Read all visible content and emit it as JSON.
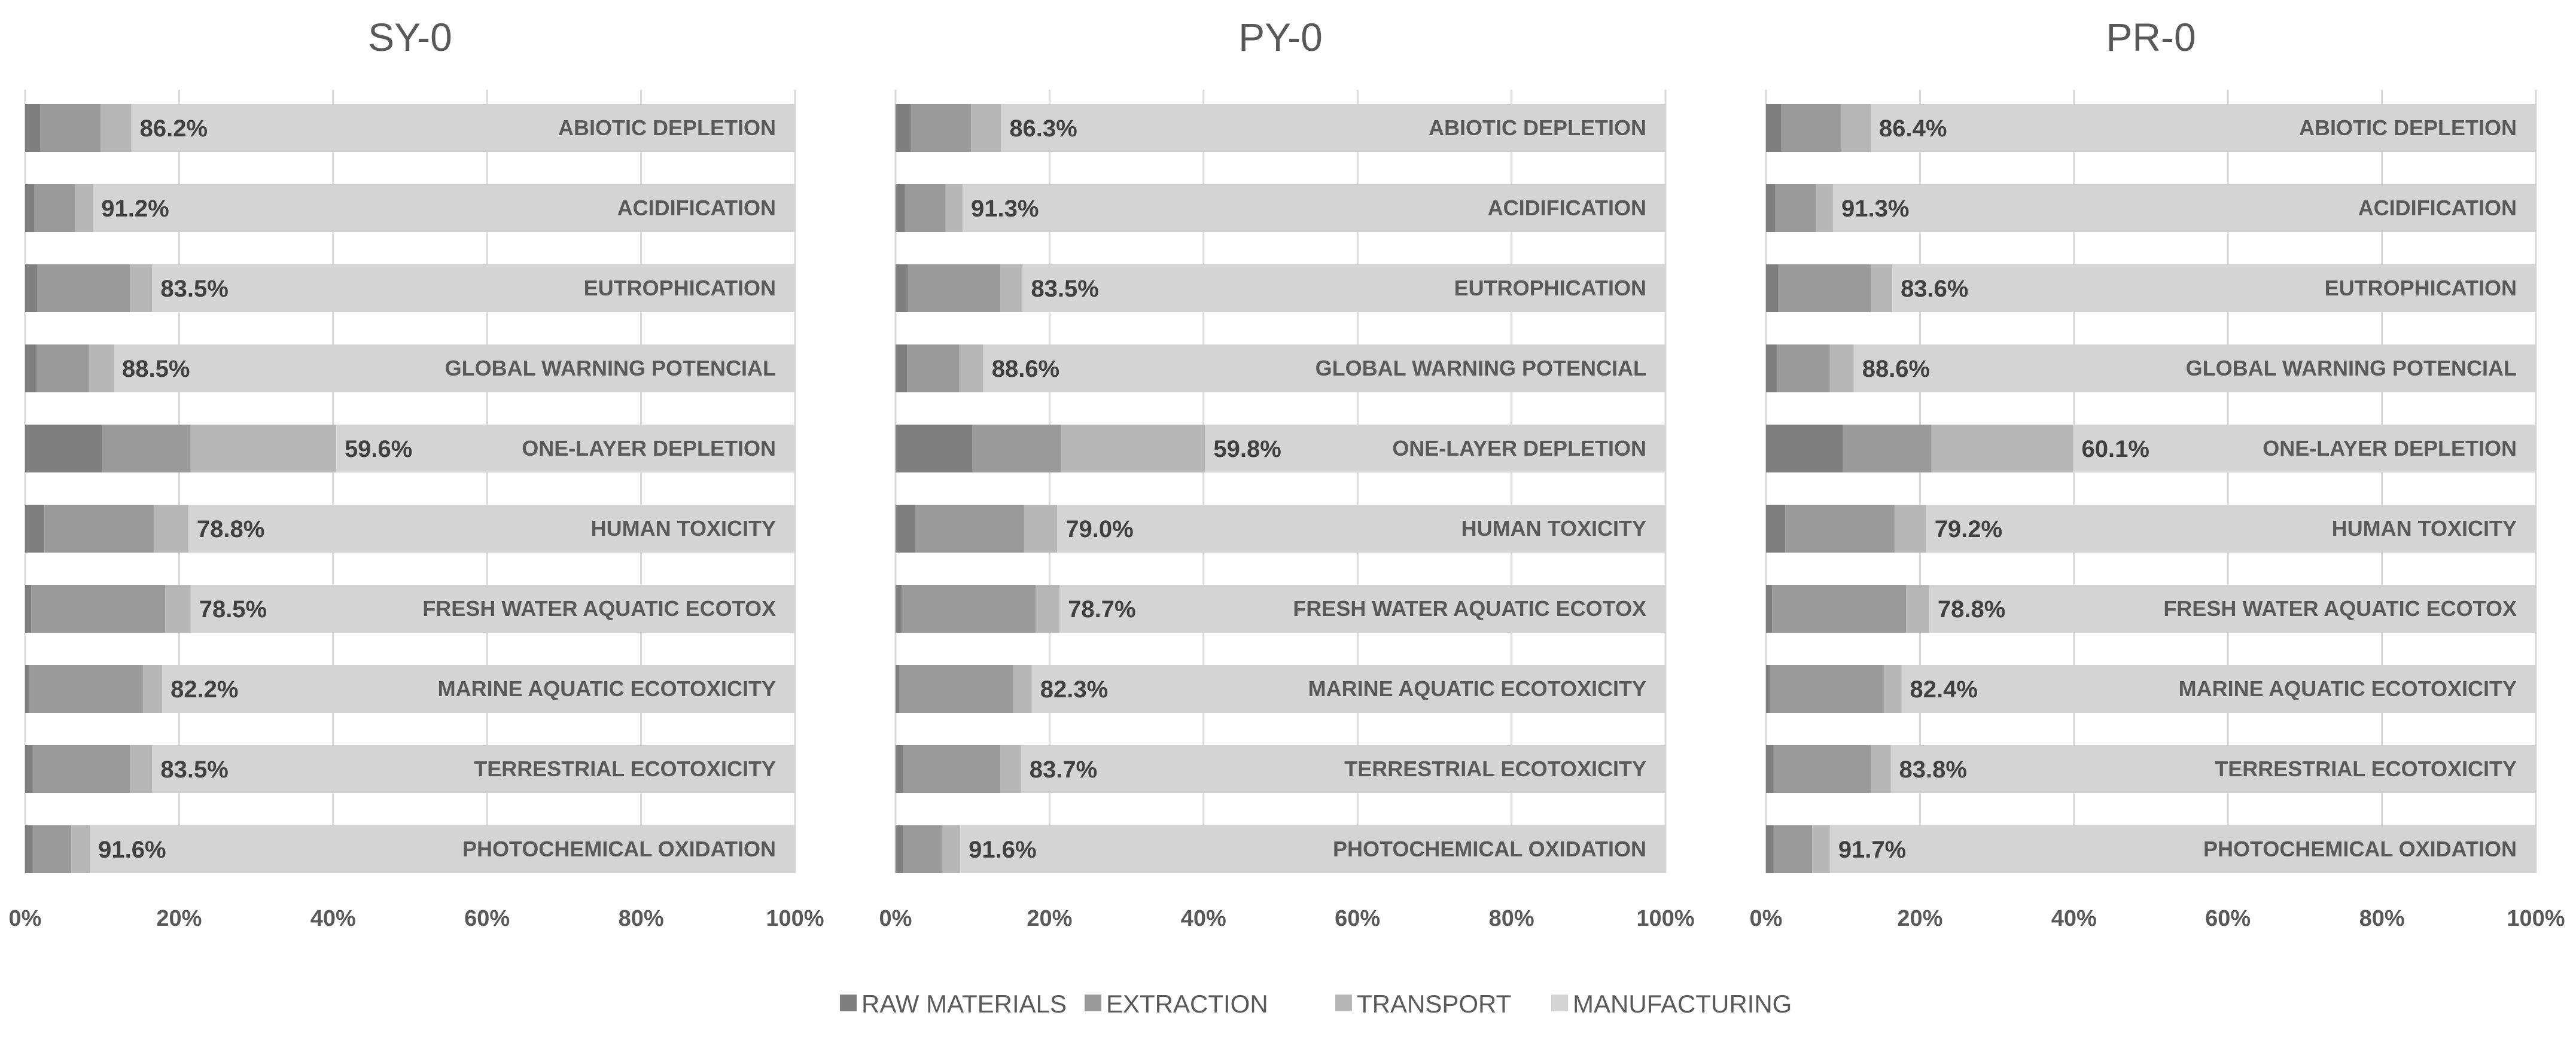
{
  "colors": {
    "RAW MATERIALS": "#7f7f7f",
    "EXTRACTION": "#9a9a9a",
    "TRANSPORT": "#b7b7b7",
    "MANUFACTURING": "#d4d4d4"
  },
  "chart_data": [
    {
      "type": "bar",
      "orientation": "horizontal",
      "stacked": "percent",
      "title": "SY-0",
      "categories": [
        "ABIOTIC DEPLETION",
        "ACIDIFICATION",
        "EUTROPHICATION",
        "GLOBAL WARNING POTENCIAL",
        "ONE-LAYER DEPLETION",
        "HUMAN TOXICITY",
        "FRESH WATER AQUATIC ECOTOX",
        "MARINE AQUATIC ECOTOXICITY",
        "TERRESTRIAL ECOTOXICITY",
        "PHOTOCHEMICAL OXIDATION"
      ],
      "series": [
        {
          "name": "RAW MATERIALS",
          "values": [
            2.0,
            1.2,
            1.6,
            1.5,
            10.0,
            2.5,
            0.8,
            0.5,
            1.0,
            1.0
          ]
        },
        {
          "name": "EXTRACTION",
          "values": [
            7.8,
            5.3,
            12.0,
            6.8,
            11.5,
            14.2,
            17.4,
            14.8,
            12.6,
            5.0
          ]
        },
        {
          "name": "TRANSPORT",
          "values": [
            4.0,
            2.3,
            2.9,
            3.2,
            18.9,
            4.5,
            3.3,
            2.5,
            2.9,
            2.4
          ]
        },
        {
          "name": "MANUFACTURING",
          "values": [
            86.2,
            91.2,
            83.5,
            88.5,
            59.6,
            78.8,
            78.5,
            82.2,
            83.5,
            91.6
          ]
        }
      ],
      "labels": [
        "86.2%",
        "91.2%",
        "83.5%",
        "88.5%",
        "59.6%",
        "78.8%",
        "78.5%",
        "82.2%",
        "83.5%",
        "91.6%"
      ],
      "xticks": [
        "0%",
        "20%",
        "40%",
        "60%",
        "80%",
        "100%"
      ],
      "xlim": [
        0,
        100
      ],
      "grid": true
    },
    {
      "type": "bar",
      "orientation": "horizontal",
      "stacked": "percent",
      "title": "PY-0",
      "categories": [
        "ABIOTIC DEPLETION",
        "ACIDIFICATION",
        "EUTROPHICATION",
        "GLOBAL WARNING POTENCIAL",
        "ONE-LAYER DEPLETION",
        "HUMAN TOXICITY",
        "FRESH WATER AQUATIC ECOTOX",
        "MARINE AQUATIC ECOTOXICITY",
        "TERRESTRIAL ECOTOXICITY",
        "PHOTOCHEMICAL OXIDATION"
      ],
      "series": [
        {
          "name": "RAW MATERIALS",
          "values": [
            2.0,
            1.2,
            1.6,
            1.5,
            10.0,
            2.5,
            0.8,
            0.5,
            1.0,
            1.0
          ]
        },
        {
          "name": "EXTRACTION",
          "values": [
            7.8,
            5.3,
            12.0,
            6.8,
            11.5,
            14.2,
            17.4,
            14.8,
            12.6,
            5.0
          ]
        },
        {
          "name": "TRANSPORT",
          "values": [
            3.9,
            2.2,
            2.9,
            3.1,
            18.7,
            4.3,
            3.1,
            2.4,
            2.7,
            2.4
          ]
        },
        {
          "name": "MANUFACTURING",
          "values": [
            86.3,
            91.3,
            83.5,
            88.6,
            59.8,
            79.0,
            78.7,
            82.3,
            83.7,
            91.6
          ]
        }
      ],
      "labels": [
        "86.3%",
        "91.3%",
        "83.5%",
        "88.6%",
        "59.8%",
        "79.0%",
        "78.7%",
        "82.3%",
        "83.7%",
        "91.6%"
      ],
      "xticks": [
        "0%",
        "20%",
        "40%",
        "60%",
        "80%",
        "100%"
      ],
      "xlim": [
        0,
        100
      ],
      "grid": true
    },
    {
      "type": "bar",
      "orientation": "horizontal",
      "stacked": "percent",
      "title": "PR-0",
      "categories": [
        "ABIOTIC DEPLETION",
        "ACIDIFICATION",
        "EUTROPHICATION",
        "GLOBAL WARNING POTENCIAL",
        "ONE-LAYER DEPLETION",
        "HUMAN TOXICITY",
        "FRESH WATER AQUATIC ECOTOX",
        "MARINE AQUATIC ECOTOXICITY",
        "TERRESTRIAL ECOTOXICITY",
        "PHOTOCHEMICAL OXIDATION"
      ],
      "series": [
        {
          "name": "RAW MATERIALS",
          "values": [
            2.0,
            1.2,
            1.6,
            1.5,
            10.0,
            2.5,
            0.8,
            0.5,
            1.0,
            1.0
          ]
        },
        {
          "name": "EXTRACTION",
          "values": [
            7.8,
            5.3,
            12.0,
            6.8,
            11.5,
            14.2,
            17.4,
            14.8,
            12.6,
            5.0
          ]
        },
        {
          "name": "TRANSPORT",
          "values": [
            3.8,
            2.2,
            2.8,
            3.1,
            18.4,
            4.1,
            3.0,
            2.3,
            2.6,
            2.3
          ]
        },
        {
          "name": "MANUFACTURING",
          "values": [
            86.4,
            91.3,
            83.6,
            88.6,
            60.1,
            79.2,
            78.8,
            82.4,
            83.8,
            91.7
          ]
        }
      ],
      "labels": [
        "86.4%",
        "91.3%",
        "83.6%",
        "88.6%",
        "60.1%",
        "79.2%",
        "78.8%",
        "82.4%",
        "83.8%",
        "91.7%"
      ],
      "xticks": [
        "0%",
        "20%",
        "40%",
        "60%",
        "80%",
        "100%"
      ],
      "xlim": [
        0,
        100
      ],
      "grid": true
    }
  ],
  "legend": {
    "position": "bottom",
    "items": [
      "RAW MATERIALS",
      "EXTRACTION",
      "TRANSPORT",
      "MANUFACTURING"
    ]
  }
}
